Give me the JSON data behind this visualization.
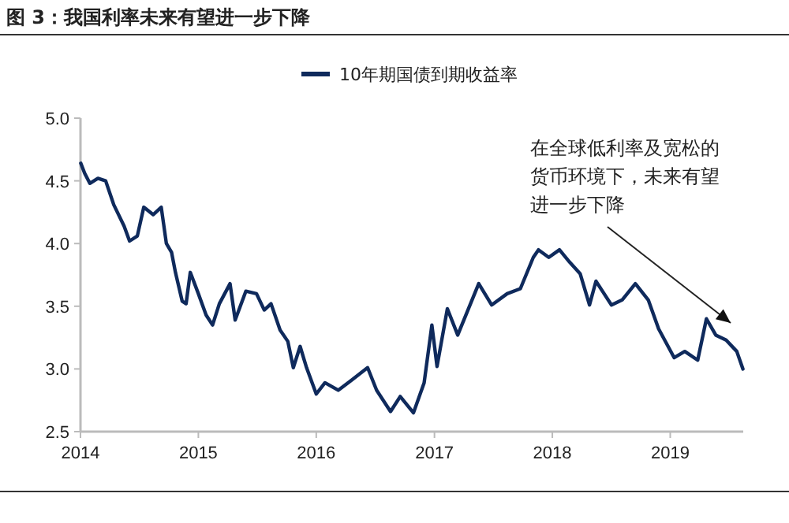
{
  "chart_data": {
    "type": "line",
    "title": "图 3：我国利率未来有望进一步下降",
    "x": [
      "2014-01-02",
      "2014-01-14",
      "2014-01-30",
      "2014-02-24",
      "2014-03-20",
      "2014-04-14",
      "2014-05-16",
      "2014-06-02",
      "2014-06-26",
      "2014-07-16",
      "2014-08-14",
      "2014-09-08",
      "2014-09-24",
      "2014-10-10",
      "2014-10-22",
      "2014-11-12",
      "2014-11-24",
      "2014-12-07",
      "2015-01-01",
      "2015-01-25",
      "2015-02-14",
      "2015-03-07",
      "2015-04-09",
      "2015-04-25",
      "2015-05-28",
      "2015-06-30",
      "2015-07-24",
      "2015-08-14",
      "2015-09-11",
      "2015-10-05",
      "2015-10-22",
      "2015-11-12",
      "2015-12-02",
      "2016-01-01",
      "2016-01-28",
      "2016-03-09",
      "2016-04-19",
      "2016-06-08",
      "2016-07-06",
      "2016-08-18",
      "2016-09-17",
      "2016-10-28",
      "2016-11-30",
      "2016-12-24",
      "2017-01-09",
      "2017-02-10",
      "2017-03-14",
      "2017-05-18",
      "2017-06-27",
      "2017-08-14",
      "2017-09-24",
      "2017-11-03",
      "2017-11-19",
      "2017-12-21",
      "2018-01-23",
      "2018-02-24",
      "2018-03-28",
      "2018-04-26",
      "2018-05-16",
      "2018-07-03",
      "2018-08-05",
      "2018-09-15",
      "2018-10-25",
      "2018-11-26",
      "2019-01-13",
      "2019-02-15",
      "2019-03-27",
      "2019-04-23",
      "2019-05-22",
      "2019-06-23",
      "2019-07-26",
      "2019-08-14"
    ],
    "series": [
      {
        "name": "10年期国债到期收益率",
        "color": "#0f2a5c",
        "values": [
          4.64,
          4.56,
          4.48,
          4.52,
          4.5,
          4.31,
          4.14,
          4.02,
          4.06,
          4.29,
          4.23,
          4.29,
          4.0,
          3.93,
          3.77,
          3.54,
          3.52,
          3.77,
          3.6,
          3.43,
          3.35,
          3.52,
          3.68,
          3.39,
          3.62,
          3.6,
          3.47,
          3.52,
          3.31,
          3.22,
          3.01,
          3.18,
          3.01,
          2.8,
          2.89,
          2.83,
          2.91,
          3.01,
          2.83,
          2.66,
          2.78,
          2.65,
          2.89,
          3.35,
          3.02,
          3.48,
          3.27,
          3.68,
          3.51,
          3.6,
          3.64,
          3.89,
          3.95,
          3.89,
          3.95,
          3.85,
          3.76,
          3.51,
          3.7,
          3.51,
          3.55,
          3.68,
          3.55,
          3.32,
          3.09,
          3.14,
          3.07,
          3.4,
          3.27,
          3.23,
          3.14,
          3.0
        ]
      }
    ],
    "xlim": [
      "2014-01-01",
      "2019-08-15"
    ],
    "xticks": [
      {
        "value": "2014-01-01",
        "label": "2014"
      },
      {
        "value": "2015-01-01",
        "label": "2015"
      },
      {
        "value": "2016-01-01",
        "label": "2016"
      },
      {
        "value": "2017-01-01",
        "label": "2017"
      },
      {
        "value": "2018-01-01",
        "label": "2018"
      },
      {
        "value": "2019-01-01",
        "label": "2019"
      }
    ],
    "ylim": [
      2.5,
      5.0
    ],
    "yticks": [
      {
        "value": 2.5,
        "label": "2.5"
      },
      {
        "value": 3,
        "label": "3.0"
      },
      {
        "value": 3.5,
        "label": "3.5"
      },
      {
        "value": 4,
        "label": "4.0"
      },
      {
        "value": 4.5,
        "label": "4.5"
      },
      {
        "value": 5,
        "label": "5.0"
      }
    ],
    "annotations": [
      "在全球低利率及宽松的货币环境下，未来有望进一步下降"
    ],
    "legend": "top",
    "grid": false,
    "marker": "none",
    "line_style": "solid"
  }
}
